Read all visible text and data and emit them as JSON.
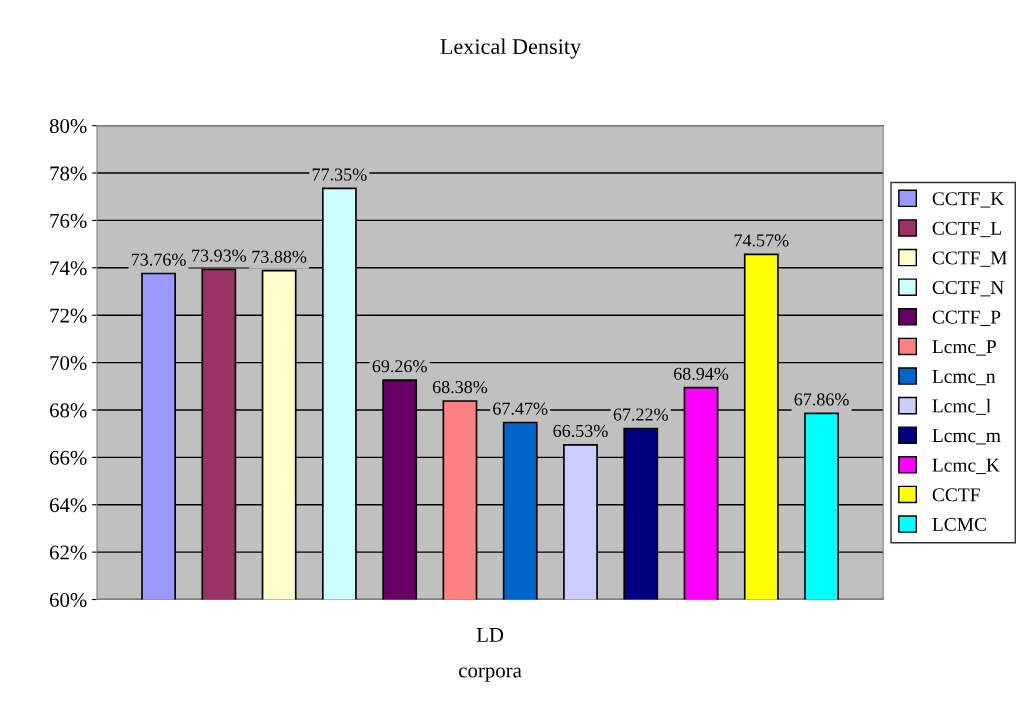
{
  "chart_data": {
    "type": "bar",
    "title": "Lexical Density",
    "xlabel": "corpora",
    "categories": [
      "LD"
    ],
    "ylim": [
      60,
      80
    ],
    "yticks": [
      {
        "value": 60,
        "label": "60%"
      },
      {
        "value": 62,
        "label": "62%"
      },
      {
        "value": 64,
        "label": "64%"
      },
      {
        "value": 66,
        "label": "66%"
      },
      {
        "value": 68,
        "label": "68%"
      },
      {
        "value": 70,
        "label": "70%"
      },
      {
        "value": 72,
        "label": "72%"
      },
      {
        "value": 74,
        "label": "74%"
      },
      {
        "value": 76,
        "label": "76%"
      },
      {
        "value": 78,
        "label": "78%"
      },
      {
        "value": 80,
        "label": "80%"
      }
    ],
    "grid": "y",
    "legend": "right",
    "series": [
      {
        "name": "CCTF_K",
        "color": "#9999ff",
        "values": [
          73.76
        ],
        "value_labels": [
          "73.76%"
        ]
      },
      {
        "name": "CCTF_L",
        "color": "#993366",
        "values": [
          73.93
        ],
        "value_labels": [
          "73.93%"
        ]
      },
      {
        "name": "CCTF_M",
        "color": "#ffffcc",
        "values": [
          73.88
        ],
        "value_labels": [
          "73.88%"
        ]
      },
      {
        "name": "CCTF_N",
        "color": "#ccffff",
        "values": [
          77.35
        ],
        "value_labels": [
          "77.35%"
        ]
      },
      {
        "name": "CCTF_P",
        "color": "#660066",
        "values": [
          69.26
        ],
        "value_labels": [
          "69.26%"
        ]
      },
      {
        "name": "Lcmc_P",
        "color": "#ff8080",
        "values": [
          68.38
        ],
        "value_labels": [
          "68.38%"
        ]
      },
      {
        "name": "Lcmc_n",
        "color": "#0066cc",
        "values": [
          67.47
        ],
        "value_labels": [
          "67.47%"
        ]
      },
      {
        "name": "Lcmc_l",
        "color": "#ccccff",
        "values": [
          66.53
        ],
        "value_labels": [
          "66.53%"
        ]
      },
      {
        "name": "Lcmc_m",
        "color": "#000080",
        "values": [
          67.22
        ],
        "value_labels": [
          "67.22%"
        ]
      },
      {
        "name": "Lcmc_K",
        "color": "#ff00ff",
        "values": [
          68.94
        ],
        "value_labels": [
          "68.94%"
        ]
      },
      {
        "name": "CCTF",
        "color": "#ffff00",
        "values": [
          74.57
        ],
        "value_labels": [
          "74.57%"
        ]
      },
      {
        "name": "LCMC",
        "color": "#00ffff",
        "values": [
          67.86
        ],
        "value_labels": [
          "67.86%"
        ]
      }
    ]
  }
}
